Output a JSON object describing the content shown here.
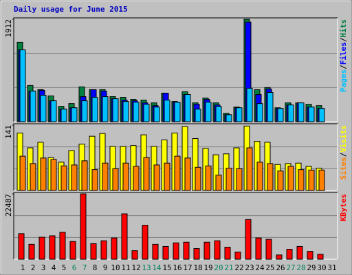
{
  "chart_data": {
    "type": "bar",
    "title": "Daily usage for June 2015",
    "categories": [
      "1",
      "2",
      "3",
      "4",
      "5",
      "6",
      "7",
      "8",
      "9",
      "10",
      "11",
      "12",
      "13",
      "14",
      "15",
      "16",
      "17",
      "18",
      "19",
      "20",
      "21",
      "22",
      "23",
      "24",
      "25",
      "26",
      "27",
      "28",
      "29",
      "30",
      "31"
    ],
    "category_colors": [
      "#000000",
      "#000000",
      "#000000",
      "#000000",
      "#000000",
      "#00805c",
      "#00805c",
      "#000000",
      "#000000",
      "#000000",
      "#000000",
      "#000000",
      "#00805c",
      "#00805c",
      "#000000",
      "#000000",
      "#000000",
      "#000000",
      "#000000",
      "#00805c",
      "#00805c",
      "#000000",
      "#000000",
      "#000000",
      "#000000",
      "#000000",
      "#00805c",
      "#00805c",
      "#000000",
      "#000000",
      "#000000"
    ],
    "legend_separator": "/",
    "grid_divisions": 3,
    "panels": [
      {
        "ylim": [
          0,
          1912
        ],
        "yticks": [
          1912
        ],
        "series": [
          {
            "name": "Hits",
            "color": "#008040",
            "values": [
              1483,
              676,
              598,
              481,
              286,
              338,
              650,
              598,
              598,
              468,
              455,
              416,
              403,
              351,
              533,
              377,
              559,
              351,
              442,
              351,
              156,
              273,
              1912,
              598,
              637,
              260,
              351,
              351,
              325,
              299,
              0
            ]
          },
          {
            "name": "Files",
            "color": "#0000ff",
            "values": [
              1340,
              572,
              585,
              390,
              234,
              260,
              468,
              598,
              572,
              429,
              403,
              390,
              351,
              299,
              533,
              364,
              507,
              325,
              416,
              312,
              130,
              260,
              1859,
              507,
              611,
              247,
              312,
              351,
              273,
              247,
              0
            ]
          },
          {
            "name": "Pages",
            "color": "#00c0ff",
            "values": [
              1340,
              572,
              494,
              390,
              234,
              260,
              390,
              455,
              468,
              429,
              377,
              364,
              325,
              273,
              403,
              364,
              507,
              234,
              364,
              286,
              130,
              260,
              624,
              338,
              546,
              247,
              312,
              351,
              273,
              247,
              0
            ]
          }
        ]
      },
      {
        "ylim": [
          0,
          141
        ],
        "yticks": [
          141
        ],
        "series": [
          {
            "name": "Visits",
            "color": "#ffff00",
            "values": [
              124,
              92,
              104,
              71,
              61,
              86,
              100,
              117,
              123,
              95,
              95,
              97,
              120,
              95,
              109,
              124,
              138,
              112,
              91,
              77,
              79,
              92,
              139,
              106,
              104,
              56,
              58,
              59,
              52,
              48,
              0
            ]
          },
          {
            "name": "Sites",
            "color": "#ff8000",
            "values": [
              74,
              58,
              70,
              67,
              53,
              55,
              64,
              45,
              59,
              47,
              59,
              52,
              71,
              55,
              59,
              74,
              70,
              50,
              53,
              33,
              48,
              47,
              92,
              61,
              58,
              42,
              52,
              45,
              44,
              44,
              0
            ]
          }
        ]
      },
      {
        "ylim": [
          0,
          22487
        ],
        "yticks": [
          22487
        ],
        "series": [
          {
            "name": "KBytes",
            "color": "#ff0000",
            "values": [
              8790,
              5124,
              7565,
              8053,
              9273,
              6101,
              22487,
              5368,
              6345,
              7320,
              15616,
              2928,
              11712,
              5124,
              4392,
              5612,
              5856,
              3660,
              5856,
              6345,
              4148,
              2440,
              13664,
              7320,
              6832,
              1464,
              3416,
              4392,
              2684,
              1708,
              0
            ]
          }
        ]
      }
    ]
  }
}
